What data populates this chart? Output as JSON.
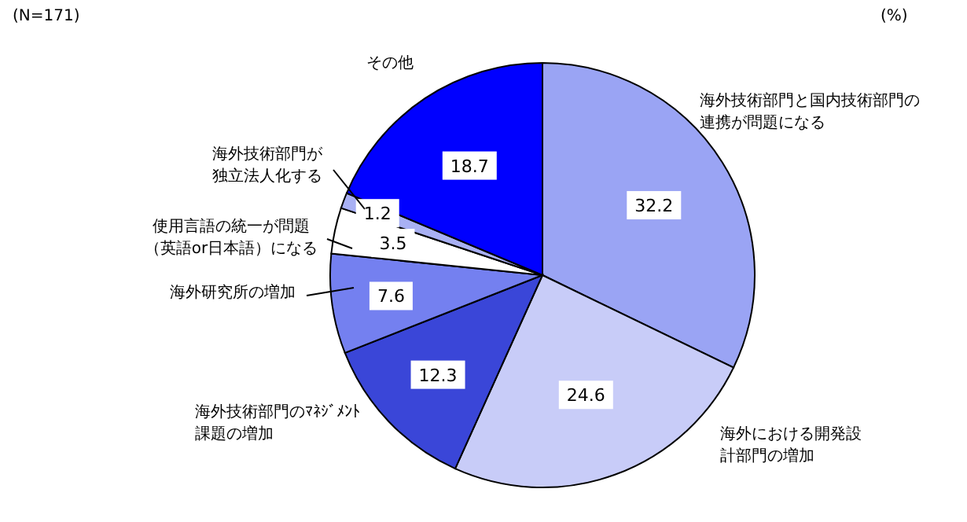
{
  "chart_data": {
    "type": "pie",
    "categories": [
      "海外技術部門と国内技術部門の連携が問題になる",
      "海外における開発設計部門の増加",
      "海外技術部門のﾏﾈｼﾞﾒﾝﾄ課題の増加",
      "海外研究所の増加",
      "使用言語の統一が問題（英語or日本語）になる",
      "海外技術部門が独立法人化する",
      "その他"
    ],
    "values": [
      32.2,
      24.6,
      12.3,
      7.6,
      3.5,
      1.2,
      18.7
    ],
    "colors": [
      "#9aa4f4",
      "#c8ccf8",
      "#3a46d8",
      "#7480f0",
      "#ffffff",
      "#a8b0f4",
      "#0000ff"
    ],
    "data_labels": true,
    "legend": false,
    "annotations": [
      "(N=171)",
      "(%)"
    ]
  }
}
